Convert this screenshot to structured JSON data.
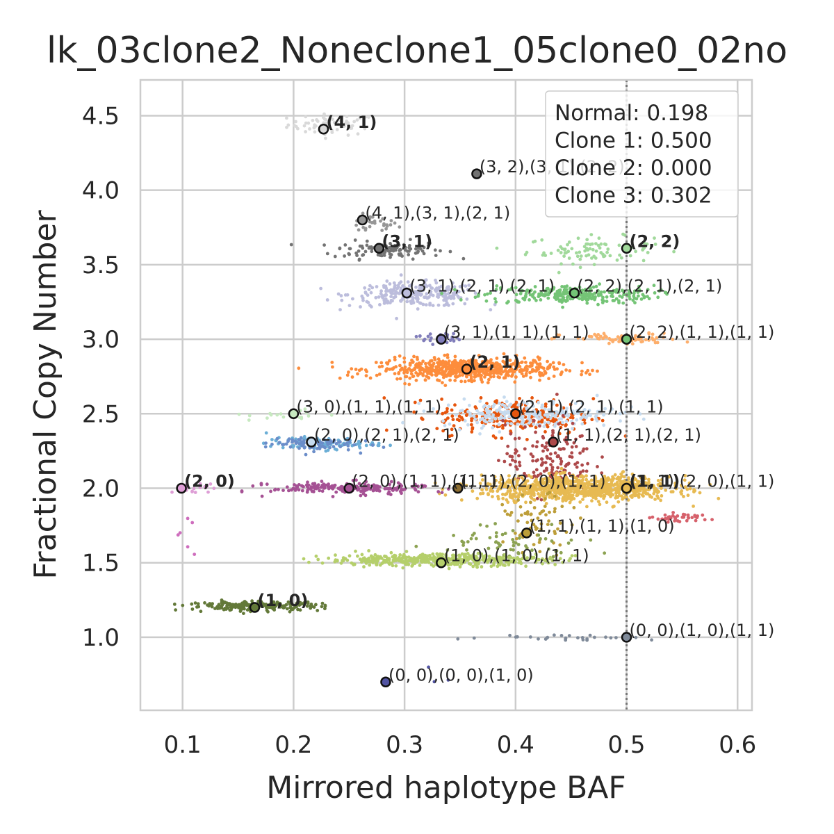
{
  "chart_data": {
    "type": "scatter",
    "title": "lk_03clone2_Noneclone1_05clone0_02no",
    "xlabel": "Mirrored haplotype BAF",
    "ylabel": "Fractional Copy Number",
    "xlim": [
      0.062,
      0.613
    ],
    "ylim": [
      0.51,
      4.74
    ],
    "xticks": [
      0.1,
      0.2,
      0.3,
      0.4,
      0.5,
      0.6
    ],
    "xtick_labels": [
      "0.1",
      "0.2",
      "0.3",
      "0.4",
      "0.5",
      "0.6"
    ],
    "yticks": [
      1.0,
      1.5,
      2.0,
      2.5,
      3.0,
      3.5,
      4.0,
      4.5
    ],
    "ytick_labels": [
      "1.0",
      "1.5",
      "2.0",
      "2.5",
      "3.0",
      "3.5",
      "4.0",
      "4.5"
    ],
    "grid": true,
    "vline_x": 0.5,
    "legend_lines": [
      "Normal: 0.198",
      "Clone 1: 0.500",
      "Clone 2: 0.000",
      "Clone 3: 0.302"
    ],
    "legend_position": "top-right",
    "clusters": [
      {
        "color": "#d9d9d9",
        "cx": 0.235,
        "cy": 4.44,
        "sx": 0.02,
        "sy": 0.035,
        "n": 60
      },
      {
        "color": "#969696",
        "cx": 0.27,
        "cy": 3.77,
        "sx": 0.012,
        "sy": 0.03,
        "n": 30
      },
      {
        "color": "#737373",
        "cx": 0.285,
        "cy": 3.6,
        "sx": 0.025,
        "sy": 0.03,
        "n": 110
      },
      {
        "color": "#a1d99b",
        "cx": 0.47,
        "cy": 3.6,
        "sx": 0.03,
        "sy": 0.045,
        "n": 90
      },
      {
        "color": "#bcbddc",
        "cx": 0.31,
        "cy": 3.3,
        "sx": 0.03,
        "sy": 0.04,
        "n": 260
      },
      {
        "color": "#74c476",
        "cx": 0.45,
        "cy": 3.3,
        "sx": 0.04,
        "sy": 0.03,
        "n": 260
      },
      {
        "color": "#807dba",
        "cx": 0.33,
        "cy": 3.01,
        "sx": 0.01,
        "sy": 0.02,
        "n": 25
      },
      {
        "color": "#fdae6b",
        "cx": 0.5,
        "cy": 3.0,
        "sx": 0.03,
        "sy": 0.02,
        "n": 70
      },
      {
        "color": "#fd8d3c",
        "cx": 0.355,
        "cy": 2.8,
        "sx": 0.04,
        "sy": 0.035,
        "n": 650
      },
      {
        "color": "#e6550d",
        "cx": 0.4,
        "cy": 2.48,
        "sx": 0.035,
        "sy": 0.06,
        "n": 250
      },
      {
        "color": "#c6dbef",
        "cx": 0.41,
        "cy": 2.5,
        "sx": 0.04,
        "sy": 0.045,
        "n": 230
      },
      {
        "color": "#c7e9c0",
        "cx": 0.2,
        "cy": 2.49,
        "sx": 0.02,
        "sy": 0.02,
        "n": 20
      },
      {
        "color": "#6baed6",
        "cx": 0.225,
        "cy": 2.3,
        "sx": 0.025,
        "sy": 0.02,
        "n": 90
      },
      {
        "color": "#6b8dc9",
        "cx": 0.215,
        "cy": 2.3,
        "sx": 0.02,
        "sy": 0.025,
        "n": 90
      },
      {
        "color": "#ad494a",
        "cx": 0.43,
        "cy": 2.2,
        "sx": 0.02,
        "sy": 0.12,
        "n": 160
      },
      {
        "color": "#e7ba52",
        "cx": 0.46,
        "cy": 2.0,
        "sx": 0.045,
        "sy": 0.04,
        "n": 900
      },
      {
        "color": "#a55194",
        "cx": 0.25,
        "cy": 2.0,
        "sx": 0.035,
        "sy": 0.02,
        "n": 200
      },
      {
        "color": "#de9ed6",
        "cx": 0.11,
        "cy": 2.0,
        "sx": 0.01,
        "sy": 0.015,
        "n": 20
      },
      {
        "color": "#ce6dbd",
        "cx": 0.105,
        "cy": 1.75,
        "sx": 0.01,
        "sy": 0.08,
        "n": 6
      },
      {
        "color": "#d6616b",
        "cx": 0.56,
        "cy": 1.8,
        "sx": 0.015,
        "sy": 0.015,
        "n": 40
      },
      {
        "color": "#bd9e39",
        "cx": 0.42,
        "cy": 1.75,
        "sx": 0.015,
        "sy": 0.1,
        "n": 70
      },
      {
        "color": "#8ca252",
        "cx": 0.4,
        "cy": 1.65,
        "sx": 0.035,
        "sy": 0.06,
        "n": 60
      },
      {
        "color": "#b5cf6b",
        "cx": 0.33,
        "cy": 1.52,
        "sx": 0.05,
        "sy": 0.02,
        "n": 450
      },
      {
        "color": "#637939",
        "cx": 0.165,
        "cy": 1.21,
        "sx": 0.03,
        "sy": 0.015,
        "n": 220
      },
      {
        "color": "#7f8a99",
        "cx": 0.45,
        "cy": 1.0,
        "sx": 0.04,
        "sy": 0.01,
        "n": 30
      },
      {
        "color": "#5254a3",
        "cx": 0.32,
        "cy": 0.8,
        "sx": 0.03,
        "sy": 0.06,
        "n": 3
      }
    ],
    "points": [
      {
        "x": 0.227,
        "y": 4.41,
        "color": "#d9d9d9",
        "label": "(4, 1)",
        "bold": true
      },
      {
        "x": 0.365,
        "y": 4.11,
        "color": "#737373",
        "label": "(3, 2),(3, 1),(2, 2)",
        "bold": false
      },
      {
        "x": 0.262,
        "y": 3.8,
        "color": "#969696",
        "label": "(4, 1),(3, 1),(2, 1)",
        "bold": false
      },
      {
        "x": 0.277,
        "y": 3.61,
        "color": "#737373",
        "label": "(3, 1)",
        "bold": true
      },
      {
        "x": 0.5,
        "y": 3.61,
        "color": "#a1d99b",
        "label": "(2, 2)",
        "bold": true
      },
      {
        "x": 0.302,
        "y": 3.31,
        "color": "#bcbddc",
        "label": "(3, 1),(2, 1),(2, 1)",
        "bold": false
      },
      {
        "x": 0.453,
        "y": 3.31,
        "color": "#74c476",
        "label": "(2, 2),(2, 1),(2, 1)",
        "bold": false
      },
      {
        "x": 0.333,
        "y": 3.0,
        "color": "#807dba",
        "label": "(3, 1),(1, 1),(1, 1)",
        "bold": false
      },
      {
        "x": 0.5,
        "y": 3.0,
        "color": "#74c476",
        "label": "(2, 2),(1, 1),(1, 1)",
        "bold": false
      },
      {
        "x": 0.356,
        "y": 2.8,
        "color": "#fd8d3c",
        "label": "(2, 1)",
        "bold": true
      },
      {
        "x": 0.2,
        "y": 2.5,
        "color": "#c7e9c0",
        "label": "(3, 0),(1, 1),(1, 1)",
        "bold": false
      },
      {
        "x": 0.4,
        "y": 2.5,
        "color": "#e6550d",
        "label": "(2, 1),(2, 1),(1, 1)",
        "bold": false
      },
      {
        "x": 0.216,
        "y": 2.31,
        "color": "#c6dbef",
        "label": "(2, 0),(2, 1),(2, 1)",
        "bold": false
      },
      {
        "x": 0.434,
        "y": 2.31,
        "color": "#ad494a",
        "label": "(1, 1),(2, 1),(2, 1)",
        "bold": false
      },
      {
        "x": 0.099,
        "y": 2.0,
        "color": "#de9ed6",
        "label": "(2, 0)",
        "bold": true
      },
      {
        "x": 0.25,
        "y": 2.0,
        "color": "#a55194",
        "label": "(2, 0),(1, 1),(1, 1)",
        "bold": false
      },
      {
        "x": 0.348,
        "y": 2.0,
        "color": "#8c6d31",
        "label": "(1, 1),(2, 0),(1, 1)",
        "bold": false
      },
      {
        "x": 0.5,
        "y": 2.0,
        "color": "#e7969c",
        "label": "(1, 1)",
        "bold": true
      },
      {
        "x": 0.5,
        "y": 2.0,
        "color": "#e7ba52",
        "label": "(1, 1),(2, 0),(1, 1)",
        "bold": false
      },
      {
        "x": 0.41,
        "y": 1.7,
        "color": "#bd9e39",
        "label": "(1, 1),(1, 1),(1, 0)",
        "bold": false
      },
      {
        "x": 0.333,
        "y": 1.5,
        "color": "#b5cf6b",
        "label": "(1, 0),(1, 0),(1, 1)",
        "bold": false
      },
      {
        "x": 0.165,
        "y": 1.2,
        "color": "#637939",
        "label": "(1, 0)",
        "bold": true
      },
      {
        "x": 0.5,
        "y": 1.0,
        "color": "#7f8a99",
        "label": "(0, 0),(1, 0),(1, 1)",
        "bold": false
      },
      {
        "x": 0.283,
        "y": 0.7,
        "color": "#5254a3",
        "label": "(0, 0),(0, 0),(1, 0)",
        "bold": false
      }
    ]
  }
}
